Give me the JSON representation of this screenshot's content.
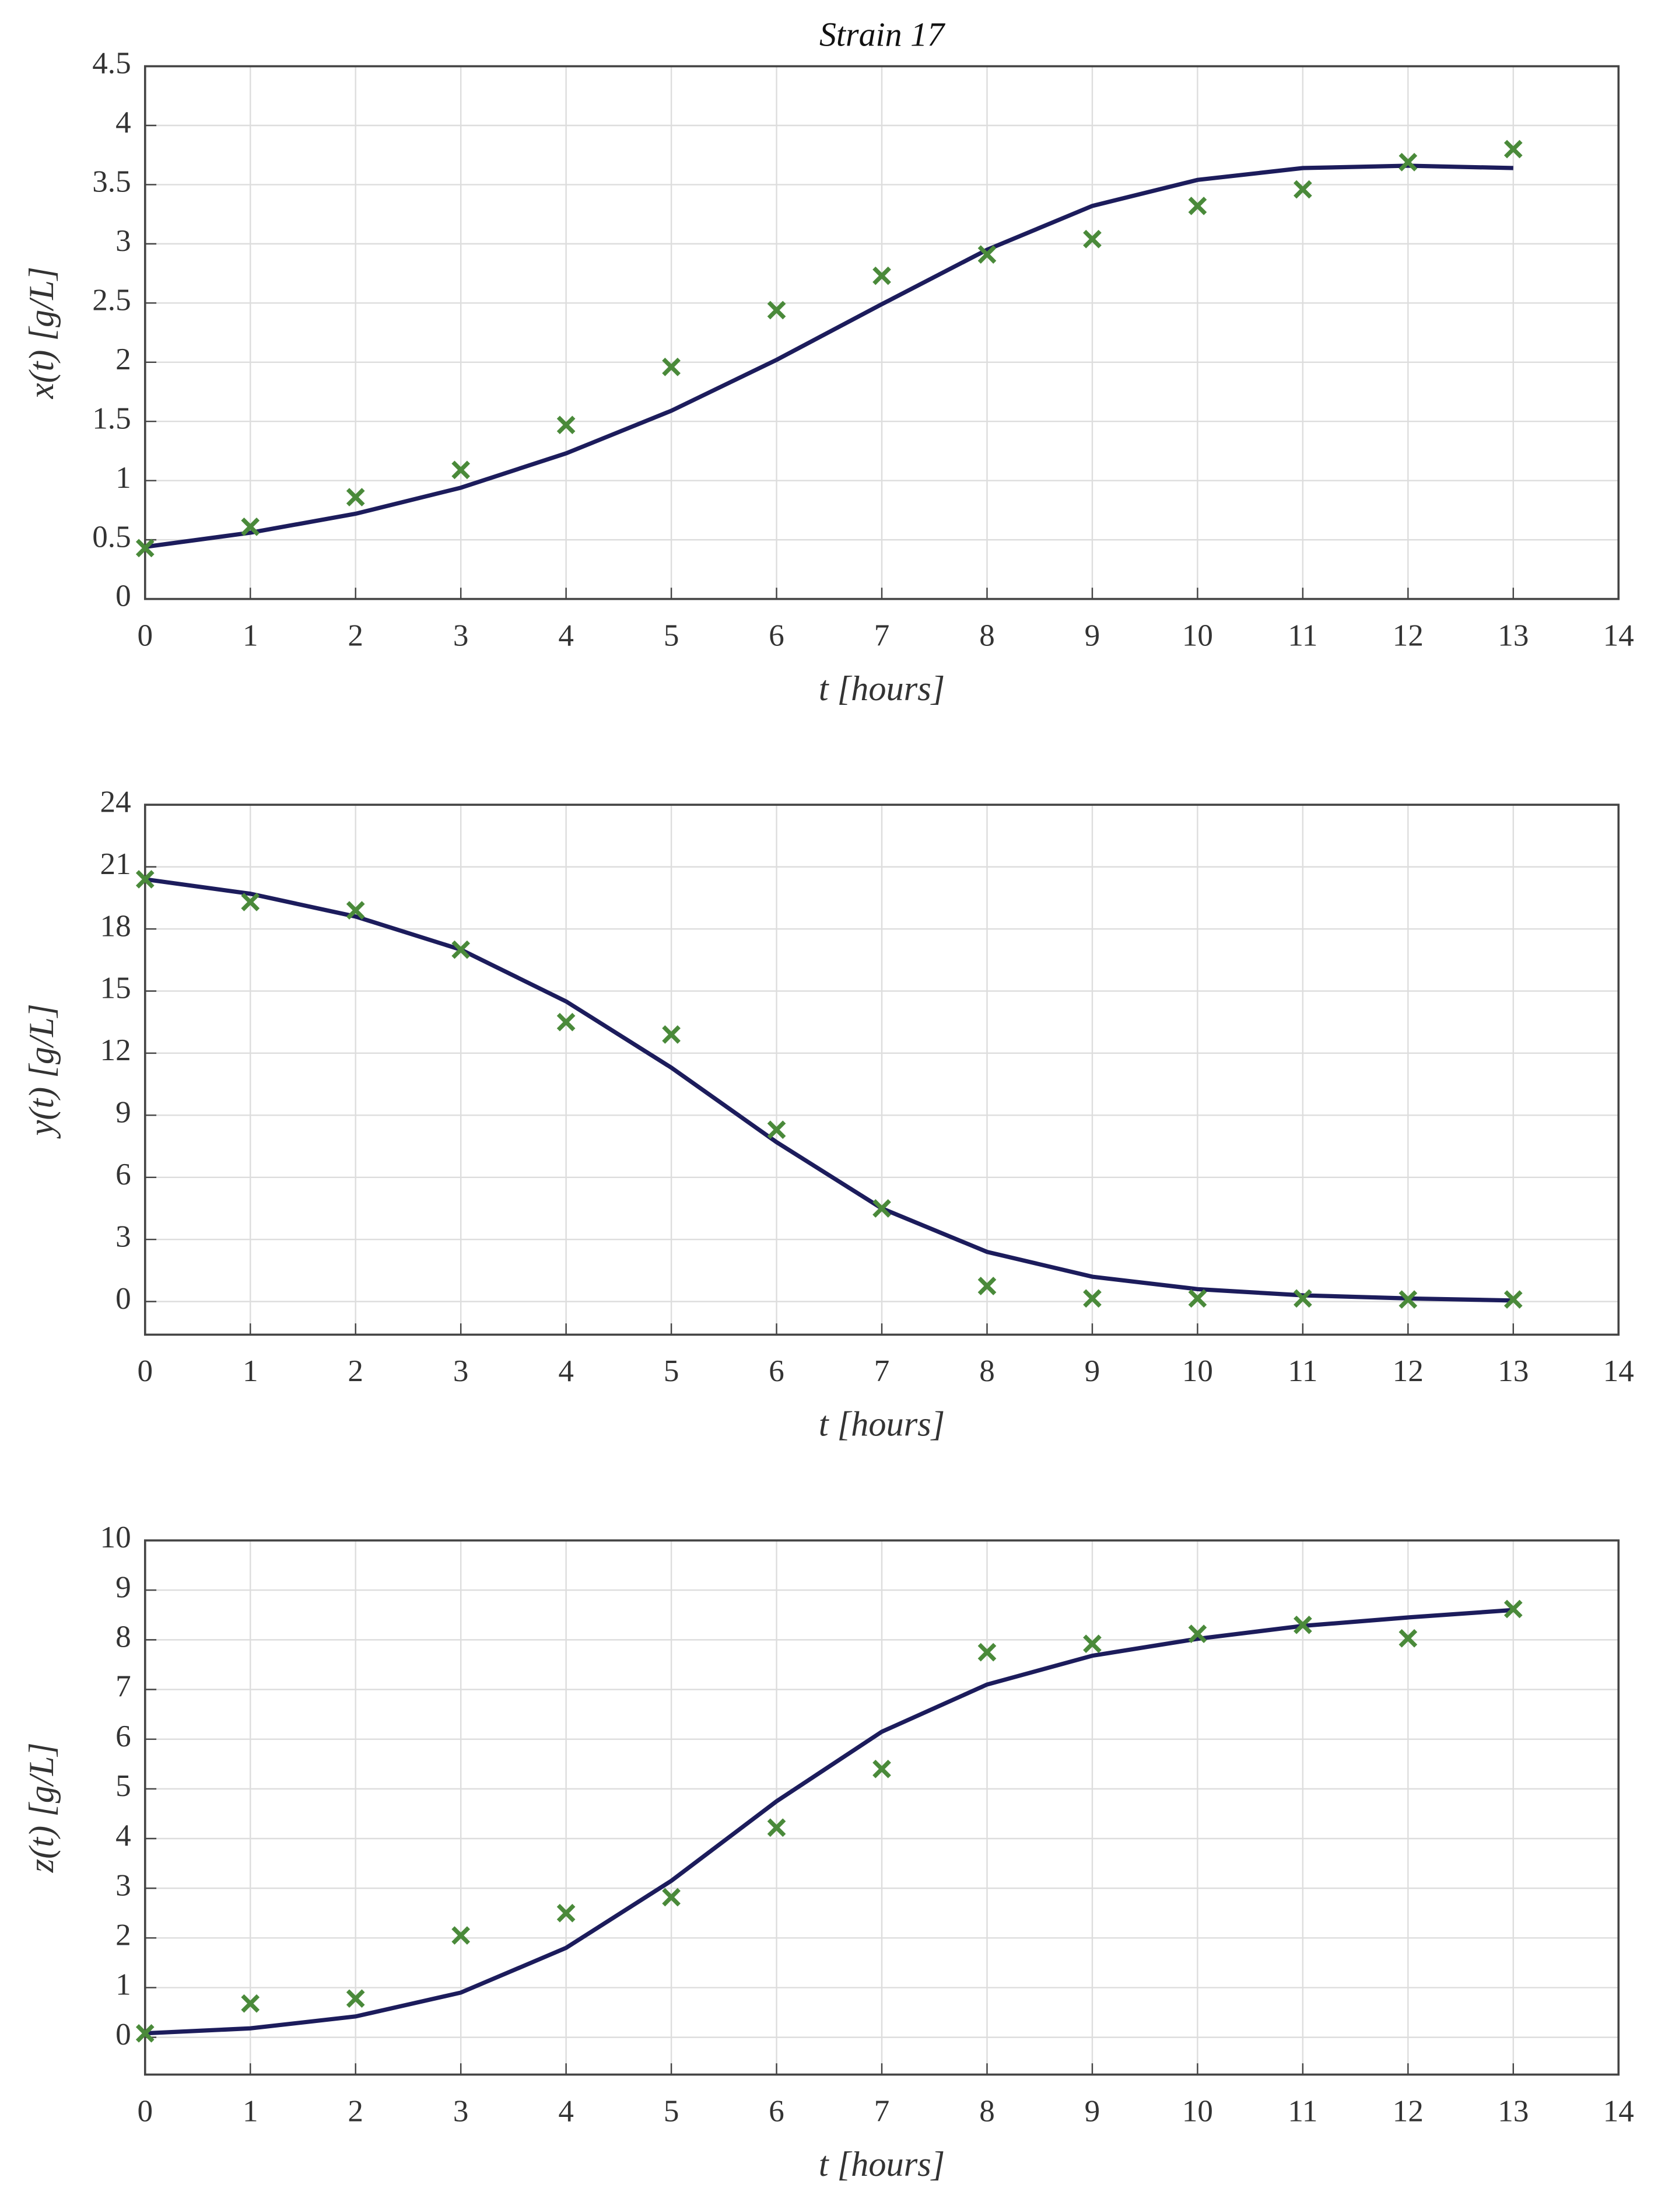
{
  "chart_data": [
    {
      "type": "line",
      "title": "Strain 17",
      "xlabel": "t [hours]",
      "ylabel": "x(t)  [g/L]",
      "grid": true,
      "x": [
        0,
        1,
        2,
        3,
        4,
        5,
        6,
        7,
        8,
        9,
        10,
        11,
        12,
        13
      ],
      "xlim": [
        0,
        14
      ],
      "xticks": [
        0,
        1,
        2,
        3,
        4,
        5,
        6,
        7,
        8,
        9,
        10,
        11,
        12,
        13,
        14
      ],
      "ylim": [
        0,
        4.5
      ],
      "yticks": [
        0,
        0.5,
        1,
        1.5,
        2,
        2.5,
        3,
        3.5,
        4,
        4.5
      ],
      "series": [
        {
          "color": "#1c1c5c",
          "style": "line",
          "values": [
            0.44,
            0.56,
            0.72,
            0.94,
            1.23,
            1.59,
            2.02,
            2.49,
            2.95,
            3.32,
            3.54,
            3.64,
            3.66,
            3.64
          ]
        },
        {
          "color": "#4a8a3a",
          "style": "x",
          "values": [
            0.43,
            0.61,
            0.86,
            1.09,
            1.47,
            1.96,
            2.44,
            2.73,
            2.91,
            3.04,
            3.32,
            3.46,
            3.69,
            3.8
          ]
        }
      ]
    },
    {
      "type": "line",
      "xlabel": "t [hours]",
      "ylabel": "y(t)  [g/L]",
      "grid": true,
      "x": [
        0,
        1,
        2,
        3,
        4,
        5,
        6,
        7,
        8,
        9,
        10,
        11,
        12,
        13
      ],
      "xlim": [
        0,
        14
      ],
      "xticks": [
        0,
        1,
        2,
        3,
        4,
        5,
        6,
        7,
        8,
        9,
        10,
        11,
        12,
        13,
        14
      ],
      "ylim": [
        -1.6,
        24
      ],
      "yticks": [
        0,
        3,
        6,
        9,
        12,
        15,
        18,
        21,
        24
      ],
      "series": [
        {
          "color": "#1c1c5c",
          "style": "line",
          "values": [
            20.4,
            19.7,
            18.6,
            17.0,
            14.5,
            11.3,
            7.7,
            4.5,
            2.4,
            1.2,
            0.6,
            0.3,
            0.15,
            0.05
          ]
        },
        {
          "color": "#4a8a3a",
          "style": "x",
          "values": [
            20.4,
            19.3,
            18.9,
            17.0,
            13.5,
            12.9,
            8.3,
            4.5,
            0.75,
            0.15,
            0.15,
            0.15,
            0.1,
            0.1
          ]
        }
      ]
    },
    {
      "type": "line",
      "xlabel": "t [hours]",
      "ylabel": "z(t)  [g/L]",
      "grid": true,
      "x": [
        0,
        1,
        2,
        3,
        4,
        5,
        6,
        7,
        8,
        9,
        10,
        11,
        12,
        13
      ],
      "xlim": [
        0,
        14
      ],
      "xticks": [
        0,
        1,
        2,
        3,
        4,
        5,
        6,
        7,
        8,
        9,
        10,
        11,
        12,
        13,
        14
      ],
      "ylim": [
        -0.75,
        10
      ],
      "yticks": [
        0,
        1,
        2,
        3,
        4,
        5,
        6,
        7,
        8,
        9,
        10
      ],
      "series": [
        {
          "color": "#1c1c5c",
          "style": "line",
          "values": [
            0.08,
            0.18,
            0.42,
            0.9,
            1.8,
            3.15,
            4.75,
            6.15,
            7.1,
            7.68,
            8.02,
            8.28,
            8.45,
            8.6
          ]
        },
        {
          "color": "#4a8a3a",
          "style": "x",
          "values": [
            0.08,
            0.68,
            0.78,
            2.05,
            2.5,
            2.82,
            4.22,
            5.4,
            7.75,
            7.92,
            8.12,
            8.3,
            8.03,
            8.62
          ]
        }
      ]
    }
  ]
}
